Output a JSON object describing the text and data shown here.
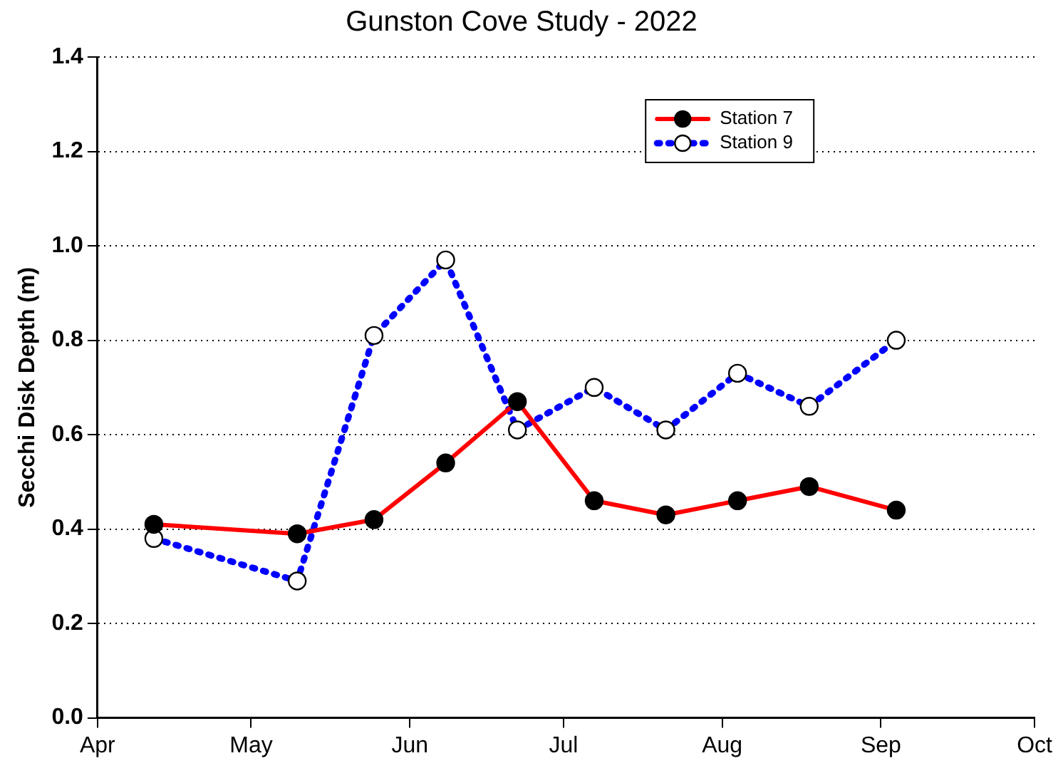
{
  "chart_data": {
    "type": "line",
    "title": "Gunston Cove Study - 2022",
    "ylabel": "Secchi Disk Depth (m)",
    "x": [
      "2022-04-12",
      "2022-05-10",
      "2022-05-25",
      "2022-06-08",
      "2022-06-22",
      "2022-07-07",
      "2022-07-21",
      "2022-08-04",
      "2022-08-18",
      "2022-09-04"
    ],
    "series": [
      {
        "name": "Station 7",
        "color": "#ff0000",
        "line_style": "solid",
        "values": [
          0.41,
          0.39,
          0.42,
          0.54,
          0.67,
          0.46,
          0.43,
          0.46,
          0.49,
          0.44
        ]
      },
      {
        "name": "Station 9",
        "color": "#0000ff",
        "line_style": "dotted",
        "values": [
          0.38,
          0.29,
          0.81,
          0.97,
          0.61,
          0.7,
          0.61,
          0.73,
          0.66,
          0.8
        ]
      }
    ],
    "xlim": [
      "2022-04-01",
      "2022-10-01"
    ],
    "xticks": [
      {
        "value": "2022-04-01",
        "label": "Apr"
      },
      {
        "value": "2022-05-01",
        "label": "May"
      },
      {
        "value": "2022-06-01",
        "label": "Jun"
      },
      {
        "value": "2022-07-01",
        "label": "Jul"
      },
      {
        "value": "2022-08-01",
        "label": "Aug"
      },
      {
        "value": "2022-09-01",
        "label": "Sep"
      },
      {
        "value": "2022-10-01",
        "label": "Oct"
      }
    ],
    "ylim": [
      0,
      1.4
    ],
    "yticks": [
      {
        "value": 0,
        "label": "0.0"
      },
      {
        "value": 0.2,
        "label": "0.2"
      },
      {
        "value": 0.4,
        "label": "0.4"
      },
      {
        "value": 0.6,
        "label": "0.6"
      },
      {
        "value": 0.8,
        "label": "0.8"
      },
      {
        "value": 1,
        "label": "1.0"
      },
      {
        "value": 1.2,
        "label": "1.2"
      },
      {
        "value": 1.4,
        "label": "1.4"
      }
    ],
    "grid": "y",
    "legend": "top right",
    "marker": "circle"
  }
}
